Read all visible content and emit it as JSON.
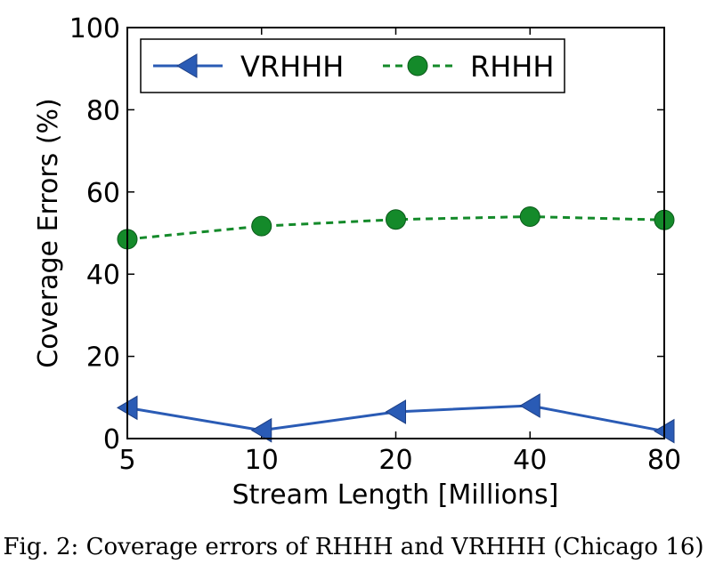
{
  "chart_data": {
    "type": "line",
    "categories": [
      "5",
      "10",
      "20",
      "40",
      "80"
    ],
    "xlabel": "Stream Length [Millions]",
    "ylabel": "Coverage Errors (%)",
    "ylim": [
      0,
      100
    ],
    "yticks": [
      0,
      20,
      40,
      60,
      80,
      100
    ],
    "grid": false,
    "legend_position": "top",
    "series": [
      {
        "name": "VRHHH",
        "values": [
          7.5,
          2.0,
          6.5,
          8.0,
          1.8
        ],
        "color": "#2a5bb5",
        "marker": "triangle-left",
        "line": "solid"
      },
      {
        "name": "RHHH",
        "values": [
          48.5,
          51.7,
          53.3,
          54.0,
          53.2
        ],
        "color": "#148a2a",
        "marker": "circle",
        "line": "dashed"
      }
    ]
  },
  "caption": "Fig. 2: Coverage errors of RHHH and VRHHH (Chicago 16)"
}
